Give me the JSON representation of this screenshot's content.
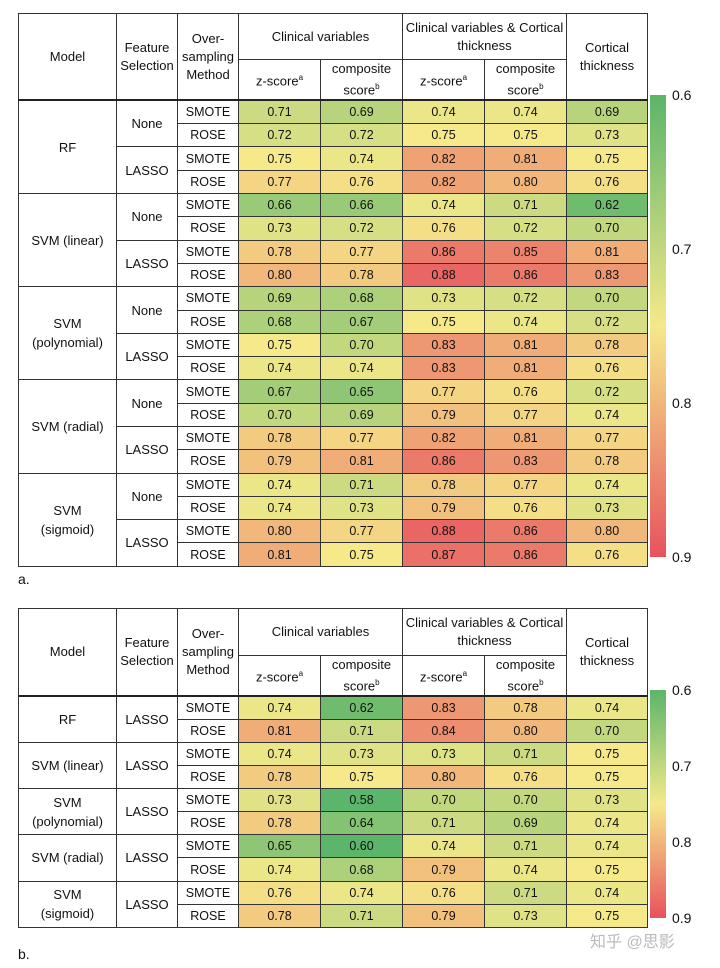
{
  "panels": [
    {
      "label": "a.",
      "headers": {
        "model": "Model",
        "feature": "Feature Selection",
        "oversampling": "Over-sampling Method",
        "group1": "Clinical variables",
        "group2": "Clinical variables & Cortical thickness",
        "cortical": "Cortical thickness",
        "zscore": "z-score",
        "zscore_sup": "a",
        "composite": "composite score",
        "composite_sup": "b"
      },
      "colorbar": {
        "ticks": [
          "0.6",
          "0.7",
          "0.8",
          "0.9"
        ],
        "min": 0.6,
        "max": 0.9
      },
      "models": [
        {
          "name": "RF",
          "groups": [
            {
              "fs": "None",
              "rows": [
                {
                  "method": "SMOTE",
                  "values": [
                    "0.71",
                    "0.69",
                    "0.74",
                    "0.74",
                    "0.69"
                  ]
                },
                {
                  "method": "ROSE",
                  "values": [
                    "0.72",
                    "0.72",
                    "0.75",
                    "0.75",
                    "0.73"
                  ]
                }
              ]
            },
            {
              "fs": "LASSO",
              "rows": [
                {
                  "method": "SMOTE",
                  "values": [
                    "0.75",
                    "0.74",
                    "0.82",
                    "0.81",
                    "0.75"
                  ]
                },
                {
                  "method": "ROSE",
                  "values": [
                    "0.77",
                    "0.76",
                    "0.82",
                    "0.80",
                    "0.76"
                  ]
                }
              ]
            }
          ]
        },
        {
          "name": "SVM (linear)",
          "groups": [
            {
              "fs": "None",
              "rows": [
                {
                  "method": "SMOTE",
                  "values": [
                    "0.66",
                    "0.66",
                    "0.74",
                    "0.71",
                    "0.62"
                  ]
                },
                {
                  "method": "ROSE",
                  "values": [
                    "0.73",
                    "0.72",
                    "0.76",
                    "0.72",
                    "0.70"
                  ]
                }
              ]
            },
            {
              "fs": "LASSO",
              "rows": [
                {
                  "method": "SMOTE",
                  "values": [
                    "0.78",
                    "0.77",
                    "0.86",
                    "0.85",
                    "0.81"
                  ]
                },
                {
                  "method": "ROSE",
                  "values": [
                    "0.80",
                    "0.78",
                    "0.88",
                    "0.86",
                    "0.83"
                  ]
                }
              ]
            }
          ]
        },
        {
          "name": "SVM (polynomial)",
          "groups": [
            {
              "fs": "None",
              "rows": [
                {
                  "method": "SMOTE",
                  "values": [
                    "0.69",
                    "0.68",
                    "0.73",
                    "0.72",
                    "0.70"
                  ]
                },
                {
                  "method": "ROSE",
                  "values": [
                    "0.68",
                    "0.67",
                    "0.75",
                    "0.74",
                    "0.72"
                  ]
                }
              ]
            },
            {
              "fs": "LASSO",
              "rows": [
                {
                  "method": "SMOTE",
                  "values": [
                    "0.75",
                    "0.70",
                    "0.83",
                    "0.81",
                    "0.78"
                  ]
                },
                {
                  "method": "ROSE",
                  "values": [
                    "0.74",
                    "0.74",
                    "0.83",
                    "0.81",
                    "0.76"
                  ]
                }
              ]
            }
          ]
        },
        {
          "name": "SVM (radial)",
          "groups": [
            {
              "fs": "None",
              "rows": [
                {
                  "method": "SMOTE",
                  "values": [
                    "0.67",
                    "0.65",
                    "0.77",
                    "0.76",
                    "0.72"
                  ]
                },
                {
                  "method": "ROSE",
                  "values": [
                    "0.70",
                    "0.69",
                    "0.79",
                    "0.77",
                    "0.74"
                  ]
                }
              ]
            },
            {
              "fs": "LASSO",
              "rows": [
                {
                  "method": "SMOTE",
                  "values": [
                    "0.78",
                    "0.77",
                    "0.82",
                    "0.81",
                    "0.77"
                  ]
                },
                {
                  "method": "ROSE",
                  "values": [
                    "0.79",
                    "0.81",
                    "0.86",
                    "0.83",
                    "0.78"
                  ]
                }
              ]
            }
          ]
        },
        {
          "name": "SVM (sigmoid)",
          "groups": [
            {
              "fs": "None",
              "rows": [
                {
                  "method": "SMOTE",
                  "values": [
                    "0.74",
                    "0.71",
                    "0.78",
                    "0.77",
                    "0.74"
                  ]
                },
                {
                  "method": "ROSE",
                  "values": [
                    "0.74",
                    "0.73",
                    "0.79",
                    "0.76",
                    "0.73"
                  ]
                }
              ]
            },
            {
              "fs": "LASSO",
              "rows": [
                {
                  "method": "SMOTE",
                  "values": [
                    "0.80",
                    "0.77",
                    "0.88",
                    "0.86",
                    "0.80"
                  ]
                },
                {
                  "method": "ROSE",
                  "values": [
                    "0.81",
                    "0.75",
                    "0.87",
                    "0.86",
                    "0.76"
                  ]
                }
              ]
            }
          ]
        }
      ]
    },
    {
      "label": "b.",
      "headers": {
        "model": "Model",
        "feature": "Feature Selection",
        "oversampling": "Over-sampling Method",
        "group1": "Clinical variables",
        "group2": "Clinical variables & Cortical thickness",
        "cortical": "Cortical thickness",
        "zscore": "z-score",
        "zscore_sup": "a",
        "composite": "composite score",
        "composite_sup": "b"
      },
      "colorbar": {
        "ticks": [
          "0.6",
          "0.7",
          "0.8",
          "0.9"
        ],
        "min": 0.6,
        "max": 0.9
      },
      "models": [
        {
          "name": "RF",
          "groups": [
            {
              "fs": "LASSO",
              "rows": [
                {
                  "method": "SMOTE",
                  "values": [
                    "0.74",
                    "0.62",
                    "0.83",
                    "0.78",
                    "0.74"
                  ]
                },
                {
                  "method": "ROSE",
                  "values": [
                    "0.81",
                    "0.71",
                    "0.84",
                    "0.80",
                    "0.70"
                  ]
                }
              ]
            }
          ]
        },
        {
          "name": "SVM (linear)",
          "groups": [
            {
              "fs": "LASSO",
              "rows": [
                {
                  "method": "SMOTE",
                  "values": [
                    "0.74",
                    "0.73",
                    "0.73",
                    "0.71",
                    "0.75"
                  ]
                },
                {
                  "method": "ROSE",
                  "values": [
                    "0.78",
                    "0.75",
                    "0.80",
                    "0.76",
                    "0.75"
                  ]
                }
              ]
            }
          ]
        },
        {
          "name": "SVM (polynomial)",
          "groups": [
            {
              "fs": "LASSO",
              "rows": [
                {
                  "method": "SMOTE",
                  "values": [
                    "0.73",
                    "0.58",
                    "0.70",
                    "0.70",
                    "0.73"
                  ]
                },
                {
                  "method": "ROSE",
                  "values": [
                    "0.78",
                    "0.64",
                    "0.71",
                    "0.69",
                    "0.74"
                  ]
                }
              ]
            }
          ]
        },
        {
          "name": "SVM (radial)",
          "groups": [
            {
              "fs": "LASSO",
              "rows": [
                {
                  "method": "SMOTE",
                  "values": [
                    "0.65",
                    "0.60",
                    "0.74",
                    "0.71",
                    "0.74"
                  ]
                },
                {
                  "method": "ROSE",
                  "values": [
                    "0.74",
                    "0.68",
                    "0.79",
                    "0.74",
                    "0.75"
                  ]
                }
              ]
            }
          ]
        },
        {
          "name": "SVM (sigmoid)",
          "groups": [
            {
              "fs": "LASSO",
              "rows": [
                {
                  "method": "SMOTE",
                  "values": [
                    "0.76",
                    "0.74",
                    "0.76",
                    "0.71",
                    "0.74"
                  ]
                },
                {
                  "method": "ROSE",
                  "values": [
                    "0.78",
                    "0.71",
                    "0.79",
                    "0.73",
                    "0.75"
                  ]
                }
              ]
            }
          ]
        }
      ]
    }
  ],
  "watermark": "知乎 @思影",
  "colors": {
    "low": "#5bb56a",
    "mid": "#f5e98a",
    "high": "#e8525e",
    "border": "#333333"
  }
}
